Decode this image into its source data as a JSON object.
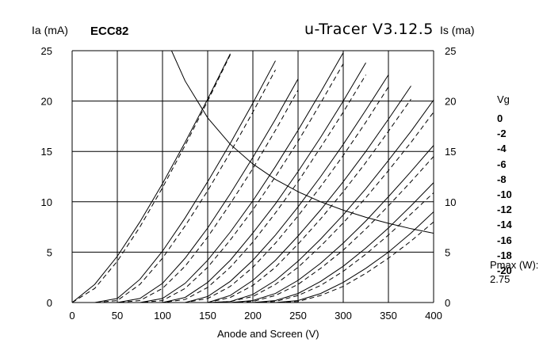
{
  "header": {
    "left_axis_unit": "Ia (mA)",
    "tube_name": "ECC82",
    "title": "u-Tracer V3.12.5",
    "right_axis_unit": "Is (ma)"
  },
  "legend": {
    "title": "Vg",
    "items": [
      "0",
      "-2",
      "-4",
      "-6",
      "-8",
      "-10",
      "-12",
      "-14",
      "-16",
      "-18",
      "-20"
    ]
  },
  "pmax": {
    "label": "Pmax (W):",
    "value": "2.75"
  },
  "chart_data": {
    "type": "line",
    "xlabel": "Anode and Screen (V)",
    "ylabel": "Ia (mA)",
    "ylabel_right": "Is (ma)",
    "xlim": [
      0,
      400
    ],
    "ylim": [
      0,
      25
    ],
    "x_ticks": [
      "0",
      "50",
      "100",
      "150",
      "200",
      "250",
      "300",
      "350",
      "400"
    ],
    "y_ticks": [
      "0",
      "5",
      "10",
      "15",
      "20",
      "25"
    ],
    "grid": true,
    "x": [
      0,
      25,
      50,
      75,
      100,
      125,
      150,
      175,
      200,
      225,
      250,
      275,
      300,
      325,
      350,
      375,
      400
    ],
    "series": [
      {
        "name": "0",
        "style": "solid",
        "values": [
          0,
          1.8,
          4.6,
          8.0,
          11.8,
          15.9,
          20.2,
          24.7,
          null,
          null,
          null,
          null,
          null,
          null,
          null,
          null,
          null
        ]
      },
      {
        "name": "0",
        "style": "dashed",
        "values": [
          0,
          1.4,
          4.1,
          7.5,
          11.4,
          15.6,
          20.0,
          24.6,
          null,
          null,
          null,
          null,
          null,
          null,
          null,
          null,
          null
        ]
      },
      {
        "name": "-2",
        "style": "solid",
        "values": [
          0,
          0,
          0.4,
          2.3,
          5.1,
          8.4,
          12.0,
          15.8,
          19.8,
          24.0,
          null,
          null,
          null,
          null,
          null,
          null,
          null
        ]
      },
      {
        "name": "-2",
        "style": "dashed",
        "values": [
          0,
          0,
          0.2,
          1.8,
          4.4,
          7.6,
          11.1,
          14.9,
          18.9,
          23.1,
          null,
          null,
          null,
          null,
          null,
          null,
          null
        ]
      },
      {
        "name": "-4",
        "style": "solid",
        "values": [
          0,
          0,
          0,
          0.4,
          1.9,
          4.4,
          7.4,
          10.8,
          14.4,
          18.2,
          22.2,
          null,
          null,
          null,
          null,
          null,
          null
        ]
      },
      {
        "name": "-4",
        "style": "dashed",
        "values": [
          0,
          0,
          0,
          0.2,
          1.4,
          3.6,
          6.5,
          9.8,
          13.3,
          17.1,
          21.1,
          null,
          null,
          null,
          null,
          null,
          null
        ]
      },
      {
        "name": "-6",
        "style": "solid",
        "values": [
          0,
          0,
          0,
          0,
          0.4,
          1.9,
          4.2,
          7.0,
          10.1,
          13.5,
          17.1,
          20.9,
          24.8,
          null,
          null,
          null,
          null
        ]
      },
      {
        "name": "-6",
        "style": "dashed",
        "values": [
          0,
          0,
          0,
          0,
          0.2,
          1.4,
          3.5,
          6.2,
          9.2,
          12.5,
          16.0,
          19.8,
          23.7,
          null,
          null,
          null,
          null
        ]
      },
      {
        "name": "-8",
        "style": "solid",
        "values": [
          0,
          0,
          0,
          0,
          0,
          0.5,
          2.0,
          4.2,
          6.9,
          9.8,
          13.0,
          16.4,
          20.0,
          23.8,
          null,
          null,
          null
        ]
      },
      {
        "name": "-8",
        "style": "dashed",
        "values": [
          0,
          0,
          0,
          0,
          0,
          0.3,
          1.5,
          3.5,
          6.0,
          8.9,
          12.0,
          15.4,
          18.9,
          22.6,
          null,
          null,
          null
        ]
      },
      {
        "name": "-10",
        "style": "solid",
        "values": [
          0,
          0,
          0,
          0,
          0,
          0,
          0.6,
          2.1,
          4.2,
          6.7,
          9.5,
          12.5,
          15.7,
          19.1,
          22.6,
          null,
          null
        ]
      },
      {
        "name": "-10",
        "style": "dashed",
        "values": [
          0,
          0,
          0,
          0,
          0,
          0,
          0.4,
          1.6,
          3.5,
          5.9,
          8.6,
          11.5,
          14.6,
          17.9,
          21.4,
          null,
          null
        ]
      },
      {
        "name": "-12",
        "style": "solid",
        "values": [
          0,
          0,
          0,
          0,
          0,
          0,
          0,
          0.7,
          2.2,
          4.2,
          6.6,
          9.2,
          12.0,
          15.0,
          18.2,
          21.5,
          null
        ]
      },
      {
        "name": "-12",
        "style": "dashed",
        "values": [
          0,
          0,
          0,
          0,
          0,
          0,
          0,
          0.5,
          1.7,
          3.5,
          5.8,
          8.3,
          11.0,
          13.9,
          17.0,
          20.2,
          null
        ]
      },
      {
        "name": "-14",
        "style": "solid",
        "values": [
          0,
          0,
          0,
          0,
          0,
          0,
          0,
          0.1,
          0.8,
          2.2,
          4.1,
          6.3,
          8.7,
          11.3,
          14.1,
          17.0,
          20.1
        ]
      },
      {
        "name": "-14",
        "style": "dashed",
        "values": [
          0,
          0,
          0,
          0,
          0,
          0,
          0,
          0.1,
          0.6,
          1.8,
          3.5,
          5.6,
          7.9,
          10.4,
          13.1,
          15.9,
          18.9
        ]
      },
      {
        "name": "-16",
        "style": "solid",
        "values": [
          0,
          0,
          0,
          0,
          0,
          0,
          0,
          0,
          0.2,
          0.9,
          2.2,
          3.9,
          5.9,
          8.1,
          10.5,
          13.0,
          15.6
        ]
      },
      {
        "name": "-16",
        "style": "dashed",
        "values": [
          0,
          0,
          0,
          0,
          0,
          0,
          0,
          0,
          0.1,
          0.7,
          1.8,
          3.4,
          5.2,
          7.3,
          9.6,
          12.0,
          14.5
        ]
      },
      {
        "name": "-18",
        "style": "solid",
        "values": [
          0,
          0,
          0,
          0,
          0,
          0,
          0,
          0,
          0,
          0.2,
          0.9,
          2.1,
          3.6,
          5.4,
          7.4,
          9.6,
          11.9
        ]
      },
      {
        "name": "-18",
        "style": "dashed",
        "values": [
          0,
          0,
          0,
          0,
          0,
          0,
          0,
          0,
          0,
          0.1,
          0.7,
          1.7,
          3.1,
          4.8,
          6.7,
          8.8,
          10.9
        ]
      },
      {
        "name": "-20",
        "style": "solid",
        "values": [
          0,
          0,
          0,
          0,
          0,
          0,
          0,
          0,
          0,
          0,
          0.2,
          0.9,
          2.0,
          3.4,
          5.0,
          6.9,
          9.0
        ]
      },
      {
        "name": "-20",
        "style": "dashed",
        "values": [
          0,
          0,
          0,
          0,
          0,
          0,
          0,
          0,
          0,
          0,
          0.1,
          0.7,
          1.6,
          2.9,
          4.4,
          6.1,
          8.0
        ]
      }
    ],
    "pmax_curve": {
      "name": "Pmax 2.75 W",
      "style": "solid",
      "x": [
        110,
        125,
        150,
        175,
        200,
        225,
        250,
        275,
        300,
        325,
        350,
        375,
        400
      ],
      "values": [
        25,
        22,
        18.33,
        15.71,
        13.75,
        12.22,
        11.0,
        10.0,
        9.17,
        8.46,
        7.86,
        7.33,
        6.88
      ]
    }
  }
}
